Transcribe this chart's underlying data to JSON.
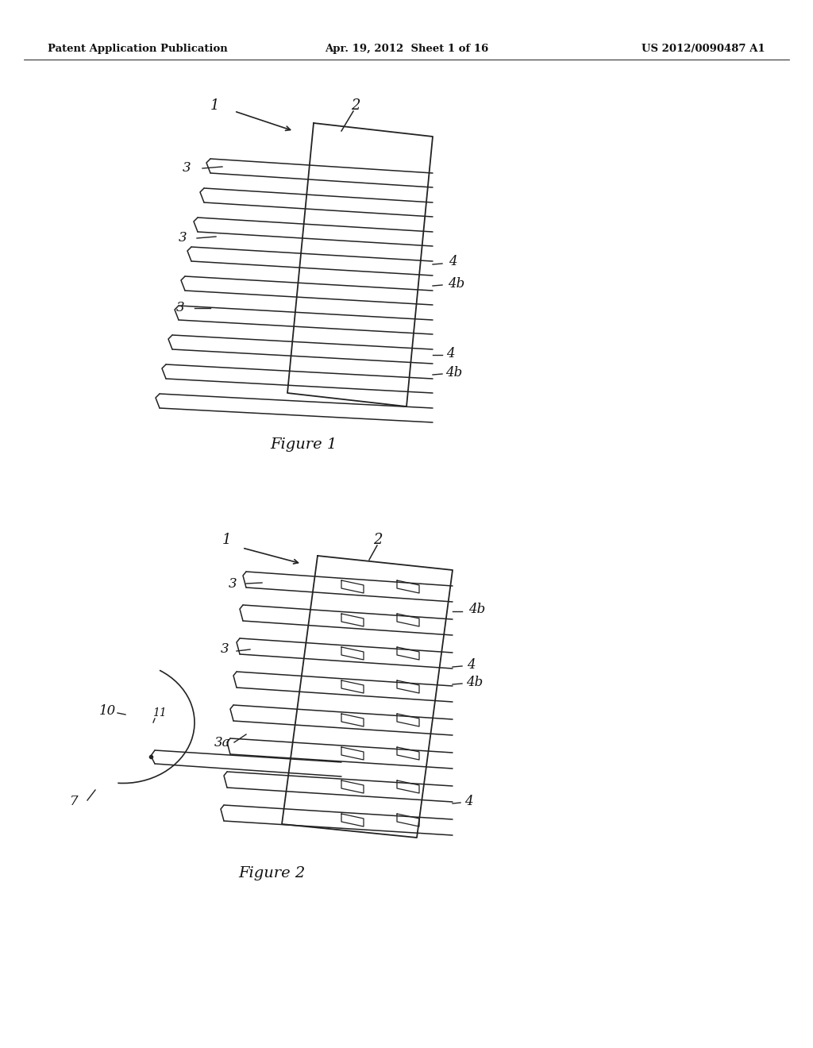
{
  "bg_color": "#ffffff",
  "header_left": "Patent Application Publication",
  "header_mid": "Apr. 19, 2012  Sheet 1 of 16",
  "header_right": "US 2012/0090487 A1",
  "fig1_caption": "Figure 1",
  "fig2_caption": "Figure 2",
  "label_color": "#111111"
}
